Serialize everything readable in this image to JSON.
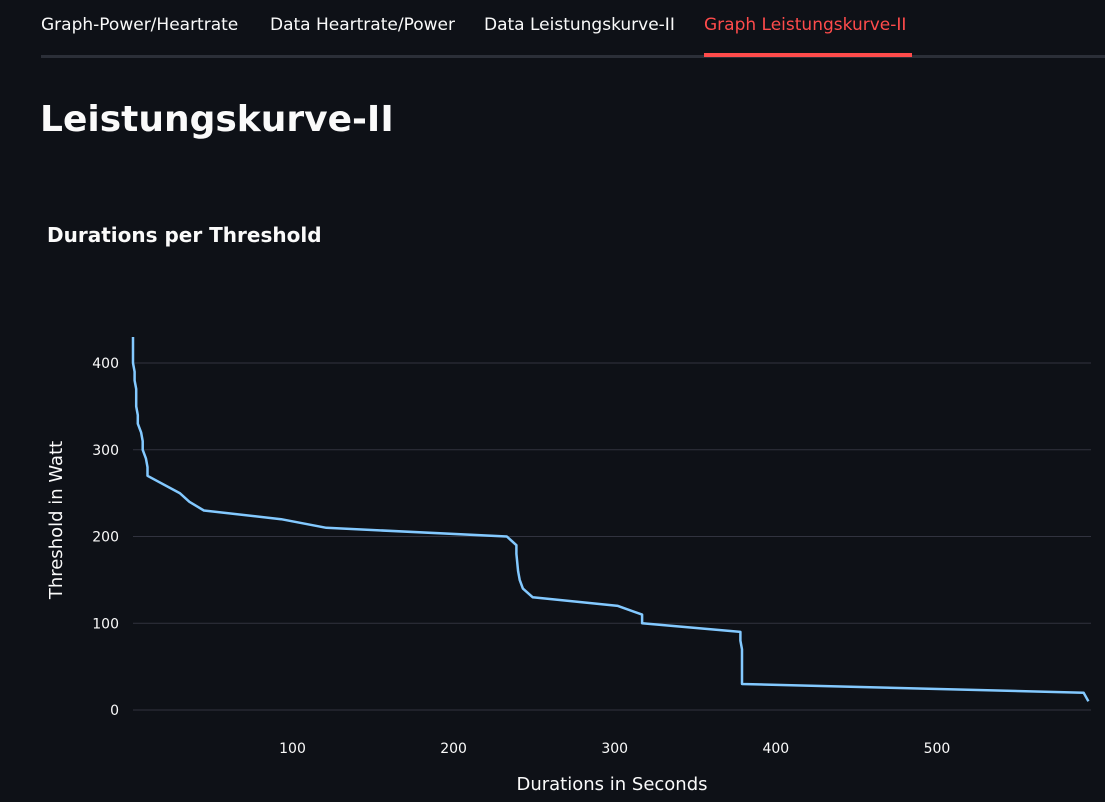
{
  "tabs": [
    {
      "label": "Graph-Power/Heartrate",
      "active": false
    },
    {
      "label": "Data Heartrate/Power",
      "active": false
    },
    {
      "label": "Data Leistungskurve-II",
      "active": false
    },
    {
      "label": "Graph Leistungskurve-II",
      "active": true
    }
  ],
  "colors": {
    "background": "#0e1117",
    "accent": "#ff4b4b",
    "line": "#83c9ff",
    "grid": "#31333f"
  },
  "page": {
    "title": "Leistungskurve-II"
  },
  "chart_data": {
    "type": "line",
    "title": "Durations per Threshold",
    "xlabel": "Durations in Seconds",
    "ylabel": "Threshold in Watt",
    "xlim": [
      1,
      595
    ],
    "ylim": [
      0,
      430
    ],
    "xticks": [
      100,
      200,
      300,
      400,
      500
    ],
    "yticks": [
      0,
      100,
      200,
      300,
      400
    ],
    "grid": "horizontal",
    "series": [
      {
        "x": [
          1,
          1,
          1,
          2,
          2,
          3,
          3,
          4,
          4,
          6,
          7,
          7,
          9,
          10,
          10,
          30,
          36,
          45,
          93,
          121,
          233,
          239,
          239,
          240,
          241,
          241,
          243,
          249,
          302,
          317,
          317,
          378,
          378,
          379,
          379,
          379,
          591,
          594
        ],
        "y": [
          430,
          420,
          400,
          390,
          380,
          370,
          350,
          340,
          330,
          320,
          310,
          300,
          290,
          280,
          270,
          250,
          240,
          230,
          220,
          210,
          200,
          190,
          180,
          160,
          150,
          150,
          140,
          130,
          120,
          110,
          100,
          90,
          80,
          70,
          60,
          30,
          20,
          10
        ]
      }
    ]
  }
}
